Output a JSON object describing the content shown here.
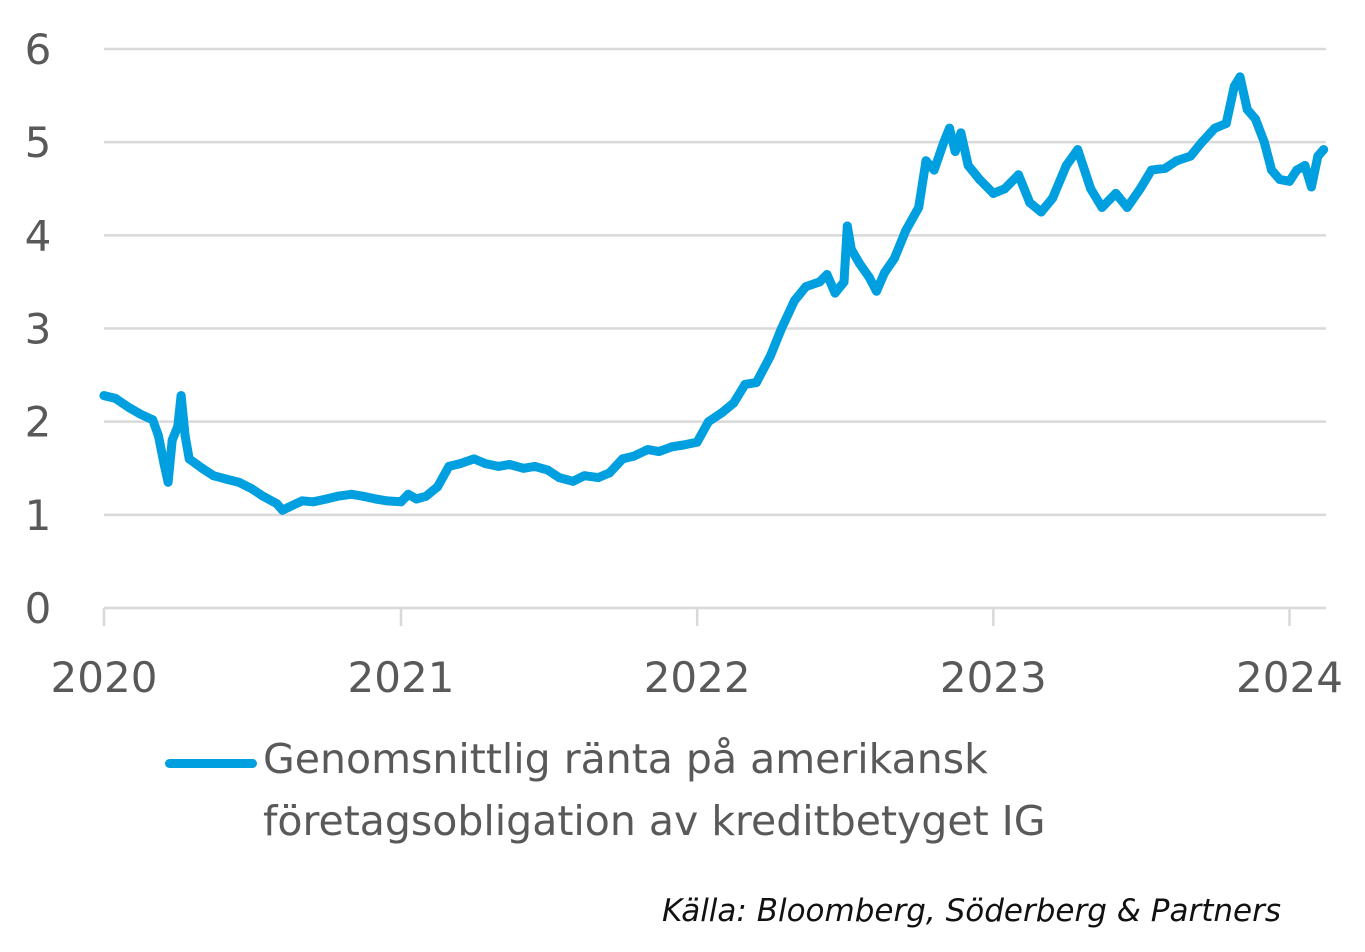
{
  "chart_data": {
    "type": "line",
    "title": "",
    "xlabel": "",
    "ylabel": "",
    "ylim": [
      0,
      6
    ],
    "xlim": [
      "2020-01-01",
      "2024-02-15"
    ],
    "y_ticks": [
      "0",
      "1",
      "2",
      "3",
      "4",
      "5",
      "6"
    ],
    "x_ticks": [
      "2020",
      "2021",
      "2022",
      "2023",
      "2024"
    ],
    "grid": "horizontal",
    "legend_position": "bottom",
    "series": [
      {
        "name": "Genomsnittlig ränta på amerikansk företagsobligation av kreditbetyget IG",
        "color": "#009FDF",
        "points": [
          [
            "2020-01-01",
            2.28
          ],
          [
            "2020-01-15",
            2.25
          ],
          [
            "2020-02-01",
            2.15
          ],
          [
            "2020-02-15",
            2.08
          ],
          [
            "2020-03-01",
            2.02
          ],
          [
            "2020-03-08",
            1.85
          ],
          [
            "2020-03-15",
            1.55
          ],
          [
            "2020-03-20",
            1.35
          ],
          [
            "2020-03-25",
            1.8
          ],
          [
            "2020-04-01",
            1.95
          ],
          [
            "2020-04-05",
            2.28
          ],
          [
            "2020-04-10",
            1.85
          ],
          [
            "2020-04-15",
            1.6
          ],
          [
            "2020-05-01",
            1.5
          ],
          [
            "2020-05-15",
            1.42
          ],
          [
            "2020-06-01",
            1.38
          ],
          [
            "2020-06-15",
            1.35
          ],
          [
            "2020-07-01",
            1.28
          ],
          [
            "2020-07-15",
            1.2
          ],
          [
            "2020-08-01",
            1.12
          ],
          [
            "2020-08-08",
            1.05
          ],
          [
            "2020-08-15",
            1.08
          ],
          [
            "2020-09-01",
            1.15
          ],
          [
            "2020-09-15",
            1.14
          ],
          [
            "2020-10-01",
            1.17
          ],
          [
            "2020-10-15",
            1.2
          ],
          [
            "2020-11-01",
            1.22
          ],
          [
            "2020-11-15",
            1.2
          ],
          [
            "2020-12-01",
            1.17
          ],
          [
            "2020-12-15",
            1.15
          ],
          [
            "2021-01-01",
            1.14
          ],
          [
            "2021-01-10",
            1.22
          ],
          [
            "2021-01-20",
            1.17
          ],
          [
            "2021-02-01",
            1.2
          ],
          [
            "2021-02-15",
            1.3
          ],
          [
            "2021-03-01",
            1.52
          ],
          [
            "2021-03-15",
            1.55
          ],
          [
            "2021-04-01",
            1.6
          ],
          [
            "2021-04-15",
            1.55
          ],
          [
            "2021-05-01",
            1.52
          ],
          [
            "2021-05-15",
            1.54
          ],
          [
            "2021-06-01",
            1.5
          ],
          [
            "2021-06-15",
            1.52
          ],
          [
            "2021-07-01",
            1.48
          ],
          [
            "2021-07-15",
            1.4
          ],
          [
            "2021-08-01",
            1.36
          ],
          [
            "2021-08-15",
            1.42
          ],
          [
            "2021-09-01",
            1.4
          ],
          [
            "2021-09-15",
            1.45
          ],
          [
            "2021-10-01",
            1.6
          ],
          [
            "2021-10-15",
            1.63
          ],
          [
            "2021-11-01",
            1.7
          ],
          [
            "2021-11-15",
            1.68
          ],
          [
            "2021-12-01",
            1.73
          ],
          [
            "2021-12-15",
            1.75
          ],
          [
            "2022-01-01",
            1.78
          ],
          [
            "2022-01-15",
            2.0
          ],
          [
            "2022-02-01",
            2.1
          ],
          [
            "2022-02-15",
            2.2
          ],
          [
            "2022-03-01",
            2.4
          ],
          [
            "2022-03-15",
            2.42
          ],
          [
            "2022-04-01",
            2.7
          ],
          [
            "2022-04-15",
            3.0
          ],
          [
            "2022-05-01",
            3.3
          ],
          [
            "2022-05-15",
            3.45
          ],
          [
            "2022-06-01",
            3.5
          ],
          [
            "2022-06-10",
            3.58
          ],
          [
            "2022-06-20",
            3.38
          ],
          [
            "2022-07-01",
            3.5
          ],
          [
            "2022-07-05",
            4.1
          ],
          [
            "2022-07-10",
            3.85
          ],
          [
            "2022-07-20",
            3.7
          ],
          [
            "2022-08-01",
            3.55
          ],
          [
            "2022-08-10",
            3.4
          ],
          [
            "2022-08-20",
            3.6
          ],
          [
            "2022-09-01",
            3.75
          ],
          [
            "2022-09-15",
            4.05
          ],
          [
            "2022-10-01",
            4.3
          ],
          [
            "2022-10-10",
            4.8
          ],
          [
            "2022-10-20",
            4.7
          ],
          [
            "2022-11-01",
            5.0
          ],
          [
            "2022-11-08",
            5.15
          ],
          [
            "2022-11-15",
            4.9
          ],
          [
            "2022-11-22",
            5.1
          ],
          [
            "2022-12-01",
            4.75
          ],
          [
            "2022-12-15",
            4.6
          ],
          [
            "2023-01-01",
            4.45
          ],
          [
            "2023-01-15",
            4.5
          ],
          [
            "2023-02-01",
            4.65
          ],
          [
            "2023-02-15",
            4.35
          ],
          [
            "2023-03-01",
            4.25
          ],
          [
            "2023-03-15",
            4.4
          ],
          [
            "2023-04-01",
            4.75
          ],
          [
            "2023-04-15",
            4.92
          ],
          [
            "2023-05-01",
            4.5
          ],
          [
            "2023-05-15",
            4.3
          ],
          [
            "2023-06-01",
            4.45
          ],
          [
            "2023-06-15",
            4.3
          ],
          [
            "2023-07-01",
            4.5
          ],
          [
            "2023-07-15",
            4.7
          ],
          [
            "2023-08-01",
            4.72
          ],
          [
            "2023-08-15",
            4.8
          ],
          [
            "2023-09-01",
            4.85
          ],
          [
            "2023-09-15",
            5.0
          ],
          [
            "2023-10-01",
            5.15
          ],
          [
            "2023-10-15",
            5.2
          ],
          [
            "2023-10-25",
            5.6
          ],
          [
            "2023-11-01",
            5.7
          ],
          [
            "2023-11-10",
            5.35
          ],
          [
            "2023-11-20",
            5.25
          ],
          [
            "2023-12-01",
            5.0
          ],
          [
            "2023-12-10",
            4.7
          ],
          [
            "2023-12-20",
            4.6
          ],
          [
            "2024-01-01",
            4.58
          ],
          [
            "2024-01-10",
            4.7
          ],
          [
            "2024-01-20",
            4.75
          ],
          [
            "2024-01-28",
            4.52
          ],
          [
            "2024-02-05",
            4.85
          ],
          [
            "2024-02-12",
            4.92
          ]
        ]
      }
    ]
  },
  "legend": {
    "label": "Genomsnittlig ränta på amerikansk företagsobligation av kreditbetyget IG"
  },
  "source": "Källa: Bloomberg, Söderberg & Partners"
}
